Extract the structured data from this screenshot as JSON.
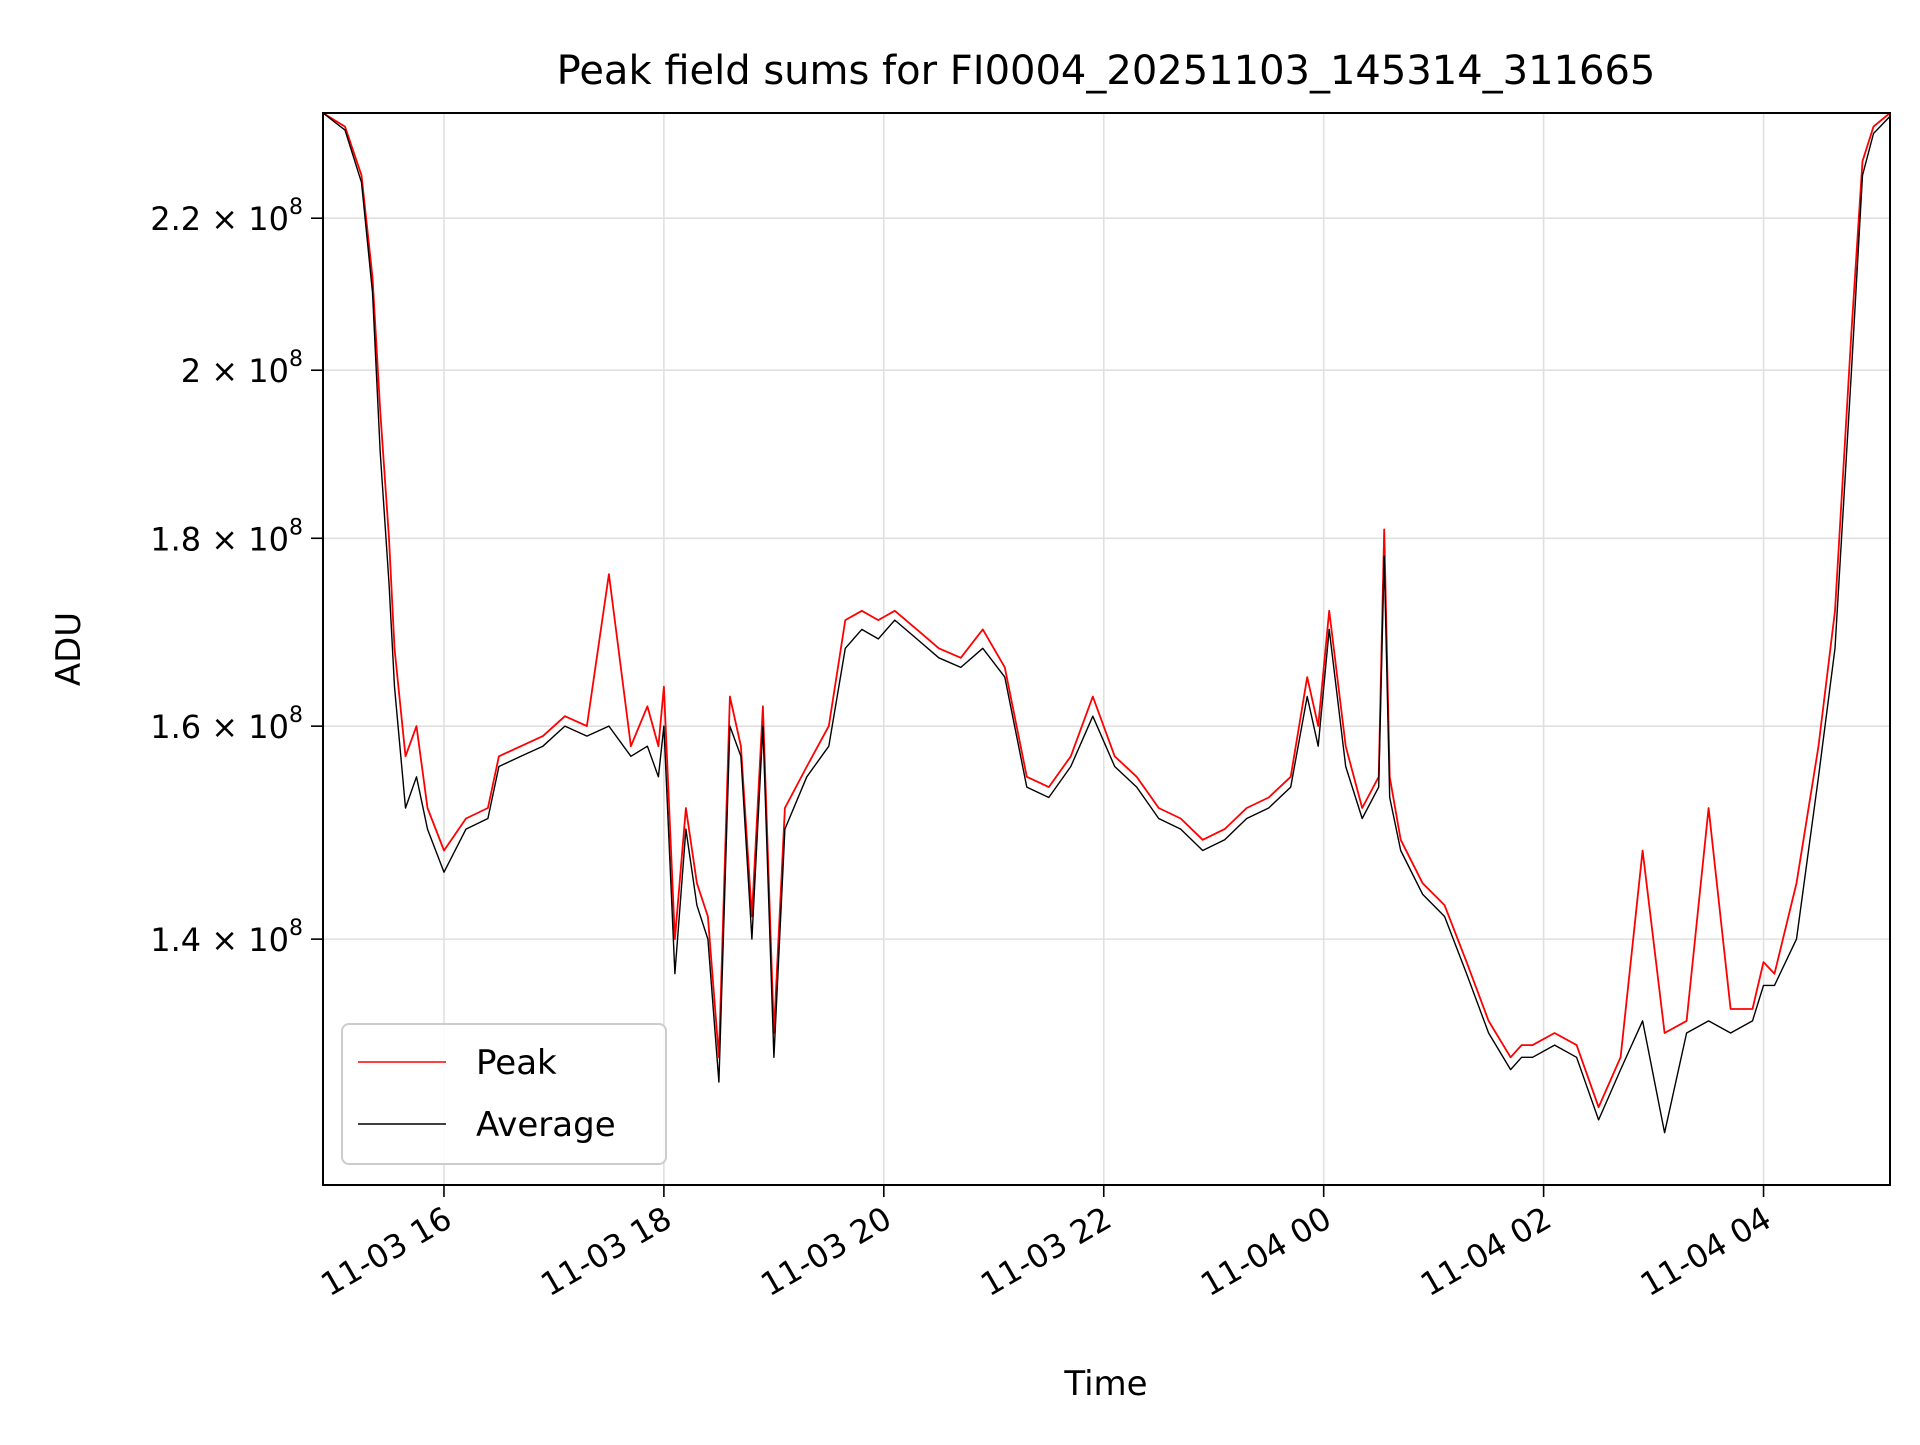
{
  "chart_data": {
    "type": "line",
    "title": "Peak field sums for FI0004_20251103_145314_311665",
    "xlabel": "Time",
    "ylabel": "ADU",
    "grid": true,
    "legend_position": "lower-left",
    "x_unit": "hours since 2025-11-03 00:00",
    "xlim": [
      14.9,
      29.15
    ],
    "ylim": [
      120000000.0,
      235000000.0
    ],
    "y_scale": "log",
    "x_ticks": [
      {
        "value": 16,
        "label": "11-03 16"
      },
      {
        "value": 18,
        "label": "11-03 18"
      },
      {
        "value": 20,
        "label": "11-03 20"
      },
      {
        "value": 22,
        "label": "11-03 22"
      },
      {
        "value": 24,
        "label": "11-04 00"
      },
      {
        "value": 26,
        "label": "11-04 02"
      },
      {
        "value": 28,
        "label": "11-04 04"
      }
    ],
    "y_ticks": [
      {
        "value": 140000000,
        "mantissa": "1.4",
        "base": "10",
        "exponent": "8"
      },
      {
        "value": 160000000,
        "mantissa": "1.6",
        "base": "10",
        "exponent": "8"
      },
      {
        "value": 180000000,
        "mantissa": "1.8",
        "base": "10",
        "exponent": "8"
      },
      {
        "value": 200000000,
        "mantissa": "2",
        "base": "10",
        "exponent": "8"
      },
      {
        "value": 220000000,
        "mantissa": "2.2",
        "base": "10",
        "exponent": "8"
      }
    ],
    "x": [
      14.9,
      15.1,
      15.25,
      15.35,
      15.42,
      15.5,
      15.55,
      15.65,
      15.75,
      15.85,
      16.0,
      16.2,
      16.4,
      16.5,
      16.7,
      16.9,
      17.1,
      17.3,
      17.5,
      17.7,
      17.85,
      17.95,
      18.0,
      18.1,
      18.2,
      18.3,
      18.4,
      18.5,
      18.6,
      18.7,
      18.8,
      18.9,
      19.0,
      19.1,
      19.3,
      19.5,
      19.65,
      19.8,
      19.95,
      20.1,
      20.3,
      20.5,
      20.7,
      20.9,
      21.1,
      21.3,
      21.5,
      21.7,
      21.9,
      22.1,
      22.3,
      22.5,
      22.7,
      22.9,
      23.1,
      23.3,
      23.5,
      23.7,
      23.85,
      23.95,
      24.05,
      24.2,
      24.35,
      24.5,
      24.55,
      24.6,
      24.7,
      24.9,
      25.1,
      25.3,
      25.5,
      25.7,
      25.8,
      25.9,
      26.1,
      26.3,
      26.5,
      26.7,
      26.9,
      27.1,
      27.3,
      27.5,
      27.7,
      27.9,
      28.0,
      28.1,
      28.3,
      28.5,
      28.65,
      28.8,
      28.9,
      29.0,
      29.15
    ],
    "series": [
      {
        "name": "Peak",
        "color": "#ff0000",
        "values": [
          235000000,
          233000000,
          226000000,
          212000000,
          195000000,
          180000000,
          168000000,
          157000000,
          160000000,
          152000000,
          148000000,
          151000000,
          152000000,
          157000000,
          158000000,
          159000000,
          161000000,
          160000000,
          176000000,
          158000000,
          162000000,
          158000000,
          164000000,
          140000000,
          152000000,
          145000000,
          142000000,
          130000000,
          163000000,
          158000000,
          142000000,
          162000000,
          132000000,
          152000000,
          156000000,
          160000000,
          171000000,
          172000000,
          171000000,
          172000000,
          170000000,
          168000000,
          167000000,
          170000000,
          166000000,
          155000000,
          154000000,
          157000000,
          163000000,
          157000000,
          155000000,
          152000000,
          151000000,
          149000000,
          150000000,
          152000000,
          153000000,
          155000000,
          165000000,
          160000000,
          172000000,
          158000000,
          152000000,
          155000000,
          181000000,
          155000000,
          149000000,
          145000000,
          143000000,
          138000000,
          133000000,
          130000000,
          131000000,
          131000000,
          132000000,
          131000000,
          126000000,
          130000000,
          148000000,
          132000000,
          133000000,
          152000000,
          134000000,
          134000000,
          138000000,
          137000000,
          145000000,
          158000000,
          172000000,
          205000000,
          228000000,
          233000000,
          235000000
        ]
      },
      {
        "name": "Average",
        "color": "#000000",
        "values": [
          235000000,
          232500000,
          225000000,
          210000000,
          190000000,
          175000000,
          164000000,
          152000000,
          155000000,
          150000000,
          146000000,
          150000000,
          151000000,
          156000000,
          157000000,
          158000000,
          160000000,
          159000000,
          160000000,
          157000000,
          158000000,
          155000000,
          160000000,
          137000000,
          150000000,
          143000000,
          140000000,
          128000000,
          160000000,
          157000000,
          140000000,
          160000000,
          130000000,
          150000000,
          155000000,
          158000000,
          168000000,
          170000000,
          169000000,
          171000000,
          169000000,
          167000000,
          166000000,
          168000000,
          165000000,
          154000000,
          153000000,
          156000000,
          161000000,
          156000000,
          154000000,
          151000000,
          150000000,
          148000000,
          149000000,
          151000000,
          152000000,
          154000000,
          163000000,
          158000000,
          170000000,
          156000000,
          151000000,
          154000000,
          178000000,
          153000000,
          148000000,
          144000000,
          142000000,
          137000000,
          132000000,
          129000000,
          130000000,
          130000000,
          131000000,
          130000000,
          125000000,
          129000000,
          133000000,
          124000000,
          132000000,
          133000000,
          132000000,
          133000000,
          136000000,
          136000000,
          140000000,
          155000000,
          168000000,
          200000000,
          226000000,
          232000000,
          234500000
        ]
      }
    ]
  }
}
